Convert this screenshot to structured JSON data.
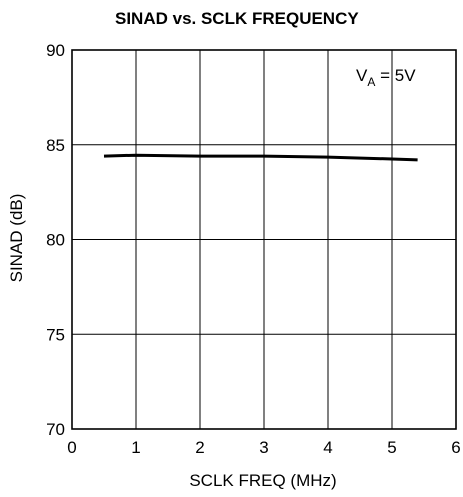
{
  "chart_data": {
    "type": "line",
    "title": "SINAD vs. SCLK FREQUENCY",
    "xlabel": "SCLK FREQ (MHz)",
    "ylabel": "SINAD (dB)",
    "xlim": [
      0,
      6
    ],
    "ylim": [
      70,
      90
    ],
    "xticks": [
      "0",
      "1",
      "2",
      "3",
      "4",
      "5",
      "6"
    ],
    "yticks": [
      "70",
      "75",
      "80",
      "85",
      "90"
    ],
    "grid": true,
    "annotation": {
      "main": "V",
      "sub": "A",
      "rest": " = 5V"
    },
    "series": [
      {
        "x": [
          0.5,
          1.0,
          2.0,
          3.0,
          4.0,
          5.0,
          5.4
        ],
        "y": [
          84.4,
          84.45,
          84.4,
          84.4,
          84.35,
          84.25,
          84.2
        ]
      }
    ],
    "colors": {
      "line": "#000000",
      "grid": "#000000",
      "background": "#ffffff"
    }
  }
}
